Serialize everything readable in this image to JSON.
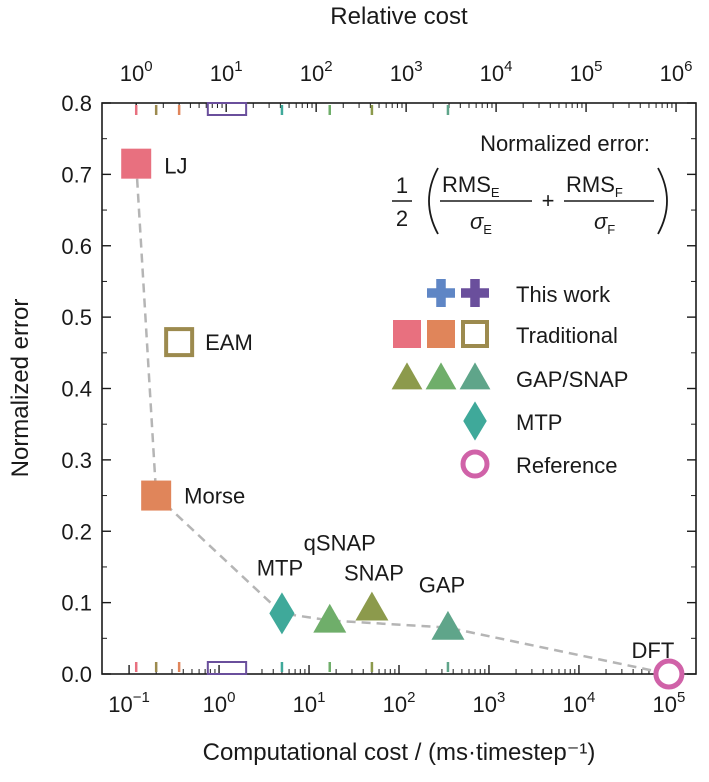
{
  "chart_data": {
    "type": "scatter",
    "title": "",
    "xlabel": "Computational cost / (ms·timestep⁻¹)",
    "ylabel": "Normalized error",
    "x2label": "Relative cost",
    "xscale": "log",
    "xlim": [
      0.05,
      200000
    ],
    "ylim": [
      0,
      0.8
    ],
    "yticks": [
      "0.0",
      "0.1",
      "0.2",
      "0.3",
      "0.4",
      "0.5",
      "0.6",
      "0.7",
      "0.8"
    ],
    "xticks": [
      {
        "base": "10",
        "exp": "−1"
      },
      {
        "base": "10",
        "exp": "0"
      },
      {
        "base": "10",
        "exp": "1"
      },
      {
        "base": "10",
        "exp": "2"
      },
      {
        "base": "10",
        "exp": "3"
      },
      {
        "base": "10",
        "exp": "4"
      },
      {
        "base": "10",
        "exp": "5"
      }
    ],
    "x2ticks": [
      {
        "base": "10",
        "exp": "0"
      },
      {
        "base": "10",
        "exp": "1"
      },
      {
        "base": "10",
        "exp": "2"
      },
      {
        "base": "10",
        "exp": "3"
      },
      {
        "base": "10",
        "exp": "4"
      },
      {
        "base": "10",
        "exp": "5"
      },
      {
        "base": "10",
        "exp": "6"
      }
    ],
    "grid": false,
    "legend_position": "right",
    "formula": {
      "title": "Normalized error:",
      "half_num": "1",
      "half_den": "2",
      "rms_e": "RMS",
      "sub_e": "E",
      "sigma_e": "σ",
      "plus": "+",
      "rms_f": "RMS",
      "sub_f": "F",
      "sigma_f": "σ"
    },
    "points": [
      {
        "label": "LJ",
        "x": 0.12,
        "y": 0.715,
        "marker": "square",
        "color": "#e8707f",
        "filled": true
      },
      {
        "label": "EAM",
        "x": 0.36,
        "y": 0.465,
        "marker": "square",
        "color": "#9c8a4e",
        "filled": false
      },
      {
        "label": "Morse",
        "x": 0.2,
        "y": 0.25,
        "marker": "square",
        "color": "#e0855a",
        "filled": true
      },
      {
        "label": "MTP",
        "x": 5.0,
        "y": 0.085,
        "marker": "diamond",
        "color": "#3fa99a",
        "filled": true
      },
      {
        "label": "qSNAP",
        "x": 17,
        "y": 0.075,
        "marker": "triangle",
        "color": "#6fae6a",
        "filled": true
      },
      {
        "label": "SNAP",
        "x": 50,
        "y": 0.092,
        "marker": "triangle",
        "color": "#8c9a4c",
        "filled": true
      },
      {
        "label": "GAP",
        "x": 350,
        "y": 0.065,
        "marker": "triangle",
        "color": "#5fa58a",
        "filled": true
      },
      {
        "label": "DFT",
        "x": 100000,
        "y": 0.0,
        "marker": "circle",
        "color": "#d062a8",
        "filled": false
      }
    ],
    "pareto_front": [
      {
        "x": 0.12,
        "y": 0.715
      },
      {
        "x": 0.2,
        "y": 0.25
      },
      {
        "x": 5.0,
        "y": 0.085
      },
      {
        "x": 17,
        "y": 0.075
      },
      {
        "x": 350,
        "y": 0.065
      },
      {
        "x": 100000,
        "y": 0.0
      }
    ],
    "legend": [
      {
        "label": "This  work",
        "markers": [
          {
            "shape": "cross",
            "color": "#5f86c5",
            "filled": true
          },
          {
            "shape": "cross",
            "color": "#6a4f9c",
            "filled": true
          }
        ]
      },
      {
        "label": "Traditional",
        "markers": [
          {
            "shape": "square",
            "color": "#e8707f",
            "filled": true
          },
          {
            "shape": "square",
            "color": "#e0855a",
            "filled": true
          },
          {
            "shape": "square",
            "color": "#9c8a4e",
            "filled": false
          }
        ]
      },
      {
        "label": "GAP/SNAP",
        "markers": [
          {
            "shape": "triangle",
            "color": "#8c9a4c",
            "filled": true
          },
          {
            "shape": "triangle",
            "color": "#6fae6a",
            "filled": true
          },
          {
            "shape": "triangle",
            "color": "#5fa58a",
            "filled": true
          }
        ]
      },
      {
        "label": "MTP",
        "markers": [
          {
            "shape": "diamond",
            "color": "#3fa99a",
            "filled": true
          }
        ]
      },
      {
        "label": "Reference",
        "markers": [
          {
            "shape": "circle",
            "color": "#d062a8",
            "filled": false
          }
        ]
      }
    ],
    "colors": {
      "pareto_line": "#b5b5b5",
      "axis": "#1a1a1a"
    }
  }
}
